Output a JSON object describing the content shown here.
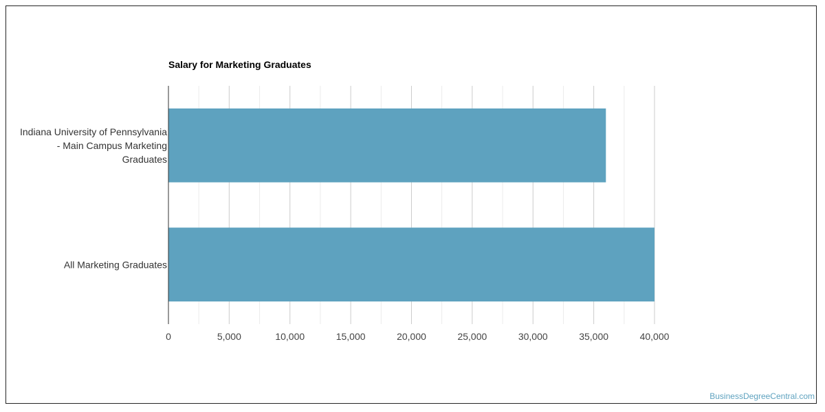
{
  "chart_data": {
    "type": "bar",
    "orientation": "horizontal",
    "title": "Salary for Marketing Graduates",
    "categories": [
      [
        "Indiana University of Pennsylvania",
        "- Main Campus Marketing",
        "Graduates"
      ],
      [
        "All Marketing Graduates"
      ]
    ],
    "values": [
      36000,
      40000
    ],
    "xlim": [
      0,
      40000
    ],
    "x_ticks": [
      "0",
      "5,000",
      "10,000",
      "15,000",
      "20,000",
      "25,000",
      "30,000",
      "35,000",
      "40,000"
    ],
    "grid": true,
    "bar_color": "#5ea2bf"
  },
  "watermark": {
    "text": "BusinessDegreeCentral.com",
    "color": "#5ea2bf"
  }
}
